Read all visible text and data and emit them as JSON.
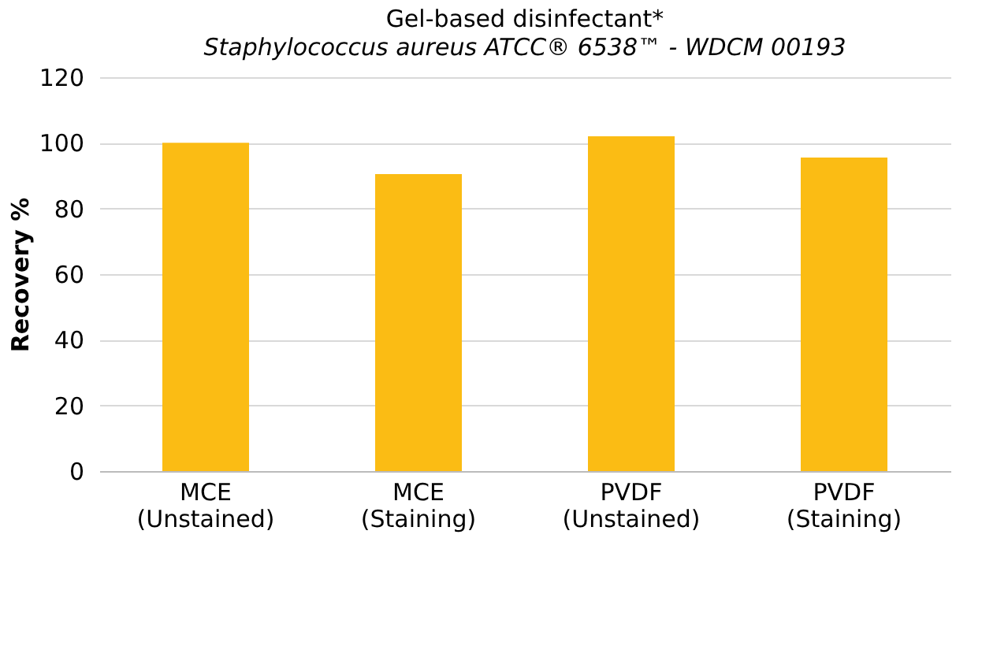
{
  "chart_data": {
    "type": "bar",
    "title": "Gel-based disinfectant*",
    "subtitle": "Staphylococcus aureus ATCC® 6538™  - WDCM 00193",
    "ylabel": "Recovery %",
    "categories": [
      "MCE\n(Unstained)",
      "MCE\n(Staining)",
      "PVDF\n(Unstained)",
      "PVDF\n(Staining)"
    ],
    "series": [
      {
        "color": "#fbbc14",
        "values": [
          100,
          90.5,
          102,
          95.5
        ]
      }
    ],
    "ylim": [
      0,
      120
    ],
    "yticks": [
      0,
      20,
      40,
      60,
      80,
      100,
      120
    ],
    "grid": "y"
  }
}
